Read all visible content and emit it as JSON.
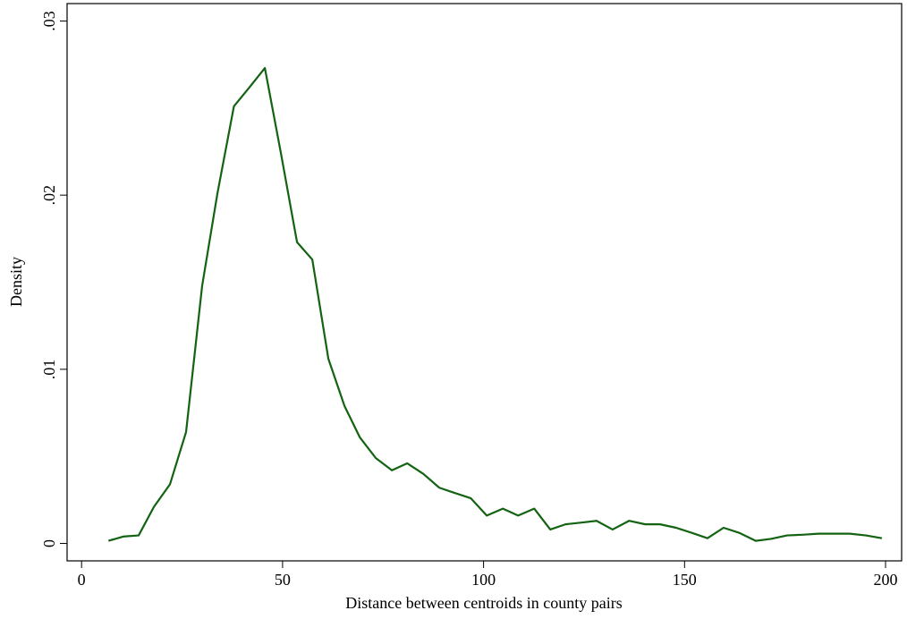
{
  "chart_data": {
    "type": "line",
    "x_label": "Distance between centroids in county pairs",
    "y_label": "Density",
    "x": [
      6.7,
      10.5,
      14.2,
      18,
      22,
      26,
      30,
      33.8,
      37.9,
      41.8,
      45.6,
      49.6,
      53.6,
      57.4,
      61.4,
      65.4,
      69.2,
      73.2,
      77.2,
      81,
      85,
      89,
      92.8,
      96.8,
      100.8,
      104.8,
      108.6,
      112.6,
      116.6,
      120.4,
      124.4,
      128.1,
      132.1,
      136.2,
      140.2,
      143.9,
      147.9,
      151.9,
      155.7,
      159.7,
      163.7,
      167.7,
      171.5,
      175.5,
      179.3,
      183.3,
      187.3,
      191.1,
      195.1,
      199.1
    ],
    "series": [
      {
        "color": "#136313",
        "values": [
          0.00015,
          0.0004,
          0.00046,
          0.0021,
          0.0034,
          0.0064,
          0.0148,
          0.0201,
          0.0251,
          0.0262,
          0.0273,
          0.0224,
          0.0173,
          0.0163,
          0.0106,
          0.0079,
          0.0061,
          0.0049,
          0.0042,
          0.0046,
          0.004,
          0.0032,
          0.0029,
          0.0026,
          0.0016,
          0.002,
          0.0016,
          0.002,
          0.0008,
          0.0011,
          0.0012,
          0.0013,
          0.0008,
          0.0013,
          0.0011,
          0.0011,
          0.0009,
          0.0006,
          0.0003,
          0.0009,
          0.0006,
          0.00015,
          0.00026,
          0.00046,
          0.0005,
          0.00056,
          0.00056,
          0.00056,
          0.00046,
          0.0003
        ]
      }
    ],
    "xlim": [
      -3.6,
      204
    ],
    "xticks": [
      0,
      50,
      100,
      150,
      200
    ],
    "ylim": [
      -0.001,
      0.031
    ],
    "yticks": [
      0,
      {
        "value": 0.01,
        "label": ".01"
      },
      {
        "value": 0.02,
        "label": ".02"
      },
      {
        "value": 0.03,
        "label": ".03"
      }
    ]
  }
}
